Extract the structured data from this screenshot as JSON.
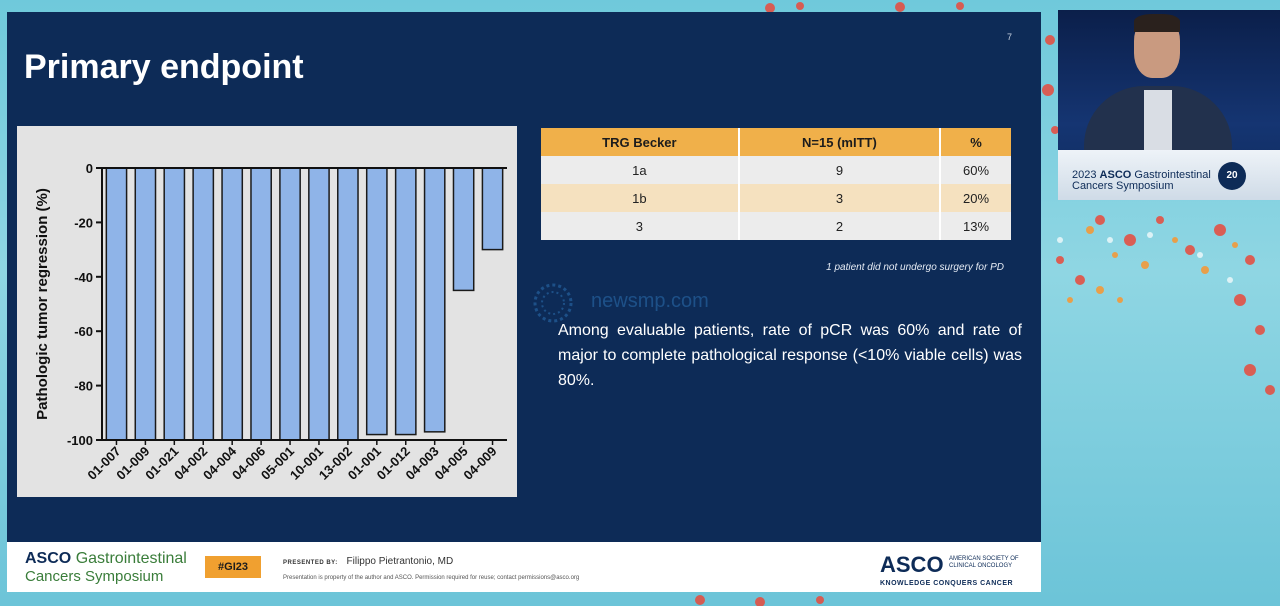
{
  "slide": {
    "title": "Primary endpoint",
    "number": "7"
  },
  "chart_data": {
    "type": "bar",
    "ylabel": "Pathologic tumor regression (%)",
    "xlabel": "",
    "ylim": [
      -100,
      0
    ],
    "yticks": [
      0,
      -20,
      -40,
      -60,
      -80,
      -100
    ],
    "categories": [
      "01-007",
      "01-009",
      "01-021",
      "04-002",
      "04-004",
      "04-006",
      "05-001",
      "10-001",
      "13-002",
      "01-001",
      "01-012",
      "04-003",
      "04-005",
      "04-009"
    ],
    "values": [
      -100,
      -100,
      -100,
      -100,
      -100,
      -100,
      -100,
      -100,
      -100,
      -98,
      -98,
      -97,
      -45,
      -30
    ],
    "bar_color": "#8fb4e8",
    "bar_edge_color": "#1a1a1a",
    "grid": false
  },
  "table": {
    "headers": [
      "TRG Becker",
      "N=15 (mITT)",
      "%"
    ],
    "rows": [
      [
        "1a",
        "9",
        "60%"
      ],
      [
        "1b",
        "3",
        "20%"
      ],
      [
        "3",
        "2",
        "13%"
      ]
    ],
    "header_color": "#f0b04a",
    "note": "1 patient did not undergo surgery for PD"
  },
  "summary": "Among evaluable patients, rate of pCR was 60% and rate of major to complete pathological response (<10% viable cells) was 80%.",
  "watermark": "newsmp.com",
  "footer": {
    "brand_bold": "ASCO",
    "brand_light": "Gastrointestinal",
    "brand_sub": "Cancers Symposium",
    "hashtag": "#GI23",
    "presented_label": "PRESENTED BY:",
    "presenter": "Filippo Pietrantonio, MD",
    "note": "Presentation is property of the author and ASCO. Permission required for reuse; contact permissions@asco.org",
    "asco_logo": "ASCO",
    "asco_side": "AMERICAN SOCIETY OF CLINICAL ONCOLOGY",
    "asco_tag": "KNOWLEDGE CONQUERS CANCER"
  },
  "camera": {
    "podium_year": "2023",
    "podium_bold": "ASCO",
    "podium_line1": "Gastrointestinal",
    "podium_line2": "Cancers Symposium",
    "podium_badge": "20"
  }
}
